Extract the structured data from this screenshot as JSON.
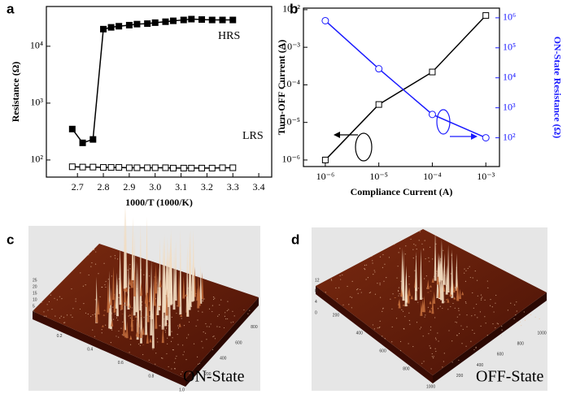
{
  "chart_data": [
    {
      "type": "line",
      "panel": "a",
      "xlabel": "1000/T (1000/K)",
      "ylabel": "Resistance (Ω)",
      "x": [
        2.68,
        2.72,
        2.76,
        2.8,
        2.83,
        2.86,
        2.9,
        2.93,
        2.97,
        3.0,
        3.04,
        3.07,
        3.11,
        3.14,
        3.18,
        3.22,
        3.26,
        3.3
      ],
      "series": [
        {
          "name": "HRS",
          "color": "#000000",
          "marker": "filled-square",
          "values": [
            350,
            200,
            230,
            20000,
            21500,
            22500,
            23500,
            24500,
            25000,
            26000,
            27000,
            28000,
            29000,
            30000,
            29500,
            29000,
            29000,
            29000
          ]
        },
        {
          "name": "LRS",
          "color": "#000000",
          "marker": "open-square",
          "values": [
            76,
            75,
            75,
            74,
            74,
            74,
            73,
            73,
            73,
            73,
            73,
            72,
            72,
            72,
            72,
            72,
            73,
            73
          ]
        }
      ],
      "xscale": "linear",
      "yscale": "log",
      "xlim": [
        2.58,
        3.45
      ],
      "ylim": [
        50,
        50000
      ],
      "xticks": [
        2.7,
        2.8,
        2.9,
        {
          "value": 3,
          "label": "3.0"
        },
        3.1,
        3.2,
        3.3,
        3.4
      ],
      "yticks": [
        {
          "value": 100,
          "label": "10²"
        },
        {
          "value": 1000,
          "label": "10³"
        },
        {
          "value": 10000,
          "label": "10⁴"
        }
      ]
    },
    {
      "type": "line",
      "panel": "b",
      "xlabel": "Compliance Current (A)",
      "ylabel": "Turn-OFF Current (A)",
      "y2label": "ON-State Resistance (Ω)",
      "x": [
        1e-06,
        1e-05,
        0.0001,
        0.001
      ],
      "series": [
        {
          "name": "Turn-OFF Current",
          "color": "#000000",
          "marker": "open-square",
          "values": [
            1e-06,
            3e-05,
            0.00022,
            0.007
          ]
        },
        {
          "name": "ON-State Resistance",
          "color": "#1a1aff",
          "marker": "open-circle",
          "axis": "y2",
          "values": [
            800000,
            20000,
            600,
            100
          ]
        }
      ],
      "xscale": "log",
      "yscale": "log",
      "y2scale": "log",
      "xlim": [
        3.9e-07,
        0.0018
      ],
      "ylim": [
        6.7e-07,
        0.011
      ],
      "y2lim": [
        11,
        2100000
      ],
      "xticks": [
        {
          "value": 1e-06,
          "label": "10⁻⁶"
        },
        {
          "value": 1e-05,
          "label": "10⁻⁵"
        },
        {
          "value": 0.0001,
          "label": "10⁻⁴"
        },
        {
          "value": 0.001,
          "label": "10⁻³"
        }
      ],
      "yticks": [
        {
          "value": 1e-06,
          "label": "10⁻⁶"
        },
        {
          "value": 1e-05,
          "label": "10⁻⁵"
        },
        {
          "value": 0.0001,
          "label": "10⁻⁴"
        },
        {
          "value": 0.001,
          "label": "10⁻³"
        },
        {
          "value": 0.01,
          "label": "10⁻²"
        }
      ],
      "y2ticks": [
        {
          "value": 100,
          "label": "10²"
        },
        {
          "value": 1000,
          "label": "10³"
        },
        {
          "value": 10000,
          "label": "10⁴"
        },
        {
          "value": 100000,
          "label": "10⁵"
        },
        {
          "value": 1000000,
          "label": "10⁶"
        }
      ]
    }
  ],
  "images": [
    {
      "panel": "c",
      "caption": "ON-State",
      "z_ticks": [
        "25",
        "20",
        "15",
        "10",
        "5",
        "0"
      ],
      "x_ticks": [
        "0.2",
        "0.4",
        "0.6",
        "0.8",
        "1.0"
      ],
      "y_ticks": [
        "200",
        "400",
        "600",
        "800"
      ]
    },
    {
      "panel": "d",
      "caption": "OFF-State",
      "z_ticks": [
        "12",
        "8",
        "4",
        "0"
      ],
      "x_ticks": [
        "200",
        "400",
        "600",
        "800",
        "1000"
      ],
      "y_ticks": [
        "200",
        "400",
        "600",
        "800",
        "1000"
      ]
    }
  ]
}
